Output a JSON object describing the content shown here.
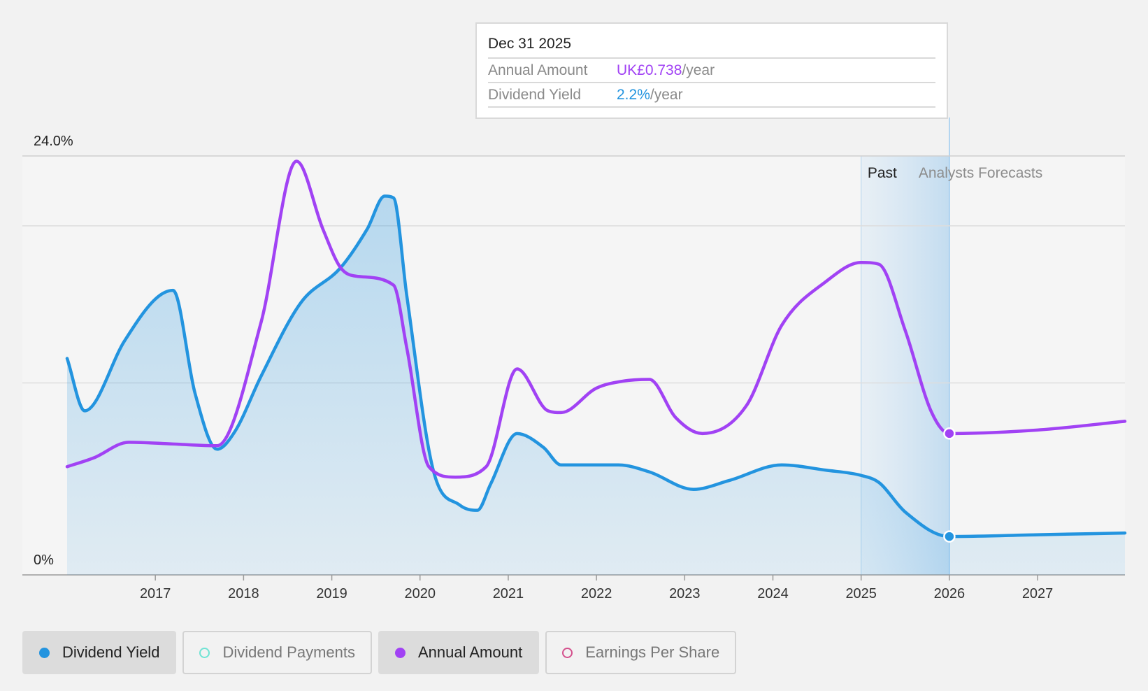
{
  "tooltip": {
    "date": "Dec 31 2025",
    "rows": [
      {
        "label": "Annual Amount",
        "value": "UK£0.738",
        "unit": "/year",
        "color": "#a142f4"
      },
      {
        "label": "Dividend Yield",
        "value": "2.2%",
        "unit": "/year",
        "color": "#2394df"
      }
    ]
  },
  "regions": {
    "past_label": "Past",
    "forecast_label": "Analysts Forecasts"
  },
  "legend": [
    {
      "label": "Dividend Yield",
      "color": "#2394df",
      "active": true
    },
    {
      "label": "Dividend Payments",
      "color": "#6fe3d4",
      "active": false
    },
    {
      "label": "Annual Amount",
      "color": "#a142f4",
      "active": true
    },
    {
      "label": "Earnings Per Share",
      "color": "#d44f8c",
      "active": false
    }
  ],
  "chart_data": {
    "type": "line",
    "y_axis_labels": [
      "24.0%",
      "0%"
    ],
    "ylim": [
      0,
      24
    ],
    "xlim": [
      2016.0,
      2027.99
    ],
    "x_ticks": [
      "2017",
      "2018",
      "2019",
      "2020",
      "2021",
      "2022",
      "2023",
      "2024",
      "2025",
      "2026",
      "2027"
    ],
    "past_start": 2025.0,
    "forecast_start": 2026.0,
    "grid": true,
    "series": [
      {
        "name": "Dividend Yield",
        "color": "#2394df",
        "fill": true,
        "points": [
          [
            2016.0,
            12.4
          ],
          [
            2016.2,
            9.4
          ],
          [
            2016.65,
            13.4
          ],
          [
            2017.0,
            15.8
          ],
          [
            2017.2,
            16.3
          ],
          [
            2017.45,
            10.4
          ],
          [
            2017.7,
            7.2
          ],
          [
            2017.9,
            8.2
          ],
          [
            2018.2,
            11.4
          ],
          [
            2018.65,
            15.6
          ],
          [
            2019.1,
            17.6
          ],
          [
            2019.4,
            19.8
          ],
          [
            2019.6,
            21.7
          ],
          [
            2019.7,
            21.6
          ],
          [
            2019.85,
            16.0
          ],
          [
            2020.15,
            6.0
          ],
          [
            2020.45,
            4.0
          ],
          [
            2020.65,
            3.7
          ],
          [
            2020.8,
            5.2
          ],
          [
            2021.1,
            8.1
          ],
          [
            2021.4,
            7.3
          ],
          [
            2021.6,
            6.3
          ],
          [
            2022.0,
            6.3
          ],
          [
            2022.25,
            6.3
          ],
          [
            2022.6,
            5.9
          ],
          [
            2023.1,
            4.9
          ],
          [
            2023.5,
            5.4
          ],
          [
            2024.1,
            6.3
          ],
          [
            2024.6,
            6.0
          ],
          [
            2025.0,
            5.7
          ],
          [
            2025.2,
            5.3
          ],
          [
            2025.5,
            3.6
          ],
          [
            2026.0,
            2.2
          ],
          [
            2027.0,
            2.3
          ],
          [
            2027.99,
            2.4
          ]
        ]
      },
      {
        "name": "Annual Amount",
        "color": "#a142f4",
        "fill": false,
        "points": [
          [
            2016.0,
            6.2
          ],
          [
            2016.3,
            6.7
          ],
          [
            2016.7,
            7.6
          ],
          [
            2017.2,
            7.5
          ],
          [
            2017.7,
            7.4
          ],
          [
            2018.2,
            14.5
          ],
          [
            2018.6,
            23.7
          ],
          [
            2018.9,
            19.8
          ],
          [
            2019.1,
            17.6
          ],
          [
            2019.3,
            17.1
          ],
          [
            2019.7,
            16.6
          ],
          [
            2019.85,
            13.0
          ],
          [
            2020.1,
            6.2
          ],
          [
            2020.4,
            5.6
          ],
          [
            2020.75,
            6.2
          ],
          [
            2021.1,
            11.8
          ],
          [
            2021.45,
            9.4
          ],
          [
            2021.6,
            9.3
          ],
          [
            2022.0,
            10.7
          ],
          [
            2022.3,
            11.1
          ],
          [
            2022.6,
            11.2
          ],
          [
            2022.9,
            9.0
          ],
          [
            2023.2,
            8.1
          ],
          [
            2023.7,
            9.7
          ],
          [
            2024.1,
            14.3
          ],
          [
            2024.6,
            16.8
          ],
          [
            2025.0,
            17.9
          ],
          [
            2025.2,
            17.8
          ],
          [
            2025.5,
            14.0
          ],
          [
            2025.8,
            9.3
          ],
          [
            2026.0,
            8.1
          ],
          [
            2027.0,
            8.3
          ],
          [
            2027.99,
            8.8
          ]
        ]
      }
    ],
    "highlight": {
      "x": "Dec 31 2025",
      "values": [
        {
          "series": "Dividend Yield",
          "y": 2.2
        },
        {
          "series": "Annual Amount",
          "y": 8.1
        }
      ]
    }
  }
}
